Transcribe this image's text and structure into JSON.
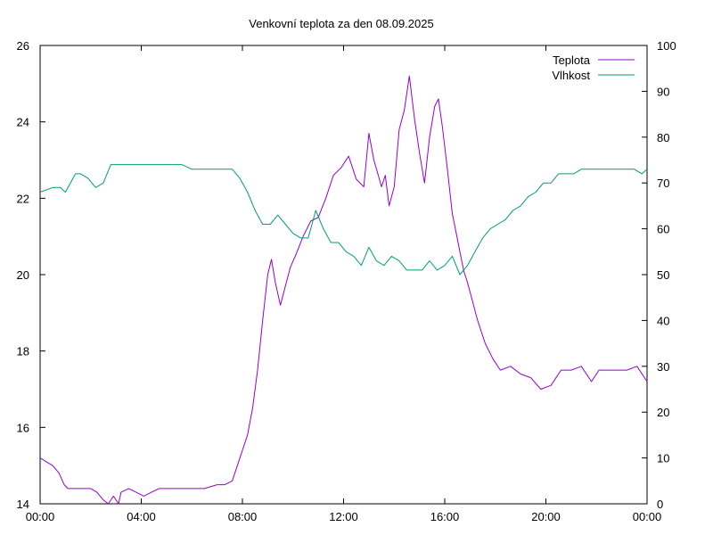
{
  "chart_data": {
    "type": "line",
    "title": "Venkovní teplota za den 08.09.2025",
    "x_ticks": [
      "00:00",
      "04:00",
      "08:00",
      "12:00",
      "16:00",
      "20:00",
      "00:00"
    ],
    "x_tick_hours": [
      0,
      4,
      8,
      12,
      16,
      20,
      24
    ],
    "x_range_hours": [
      0,
      24
    ],
    "y_left_ticks": [
      "14",
      "16",
      "18",
      "20",
      "22",
      "24",
      "26"
    ],
    "y_left_range": [
      14,
      26
    ],
    "y_right_ticks": [
      "0",
      "10",
      "20",
      "30",
      "40",
      "50",
      "60",
      "70",
      "80",
      "90",
      "100"
    ],
    "y_right_range": [
      0,
      100
    ],
    "grid": false,
    "legend_position": "top-right",
    "series": [
      {
        "name": "Teplota",
        "axis": "left",
        "color": "#9400d3",
        "x": [
          0,
          0.25,
          0.5,
          0.75,
          0.95,
          1.1,
          1.3,
          1.6,
          2.0,
          2.25,
          2.5,
          2.7,
          2.9,
          3.1,
          3.2,
          3.5,
          3.8,
          4.1,
          4.4,
          4.7,
          5.0,
          5.5,
          6.0,
          6.5,
          7.0,
          7.3,
          7.6,
          7.8,
          8.0,
          8.2,
          8.4,
          8.6,
          8.8,
          9.0,
          9.15,
          9.3,
          9.5,
          9.7,
          9.9,
          10.1,
          10.4,
          10.7,
          11.0,
          11.3,
          11.6,
          11.9,
          12.2,
          12.5,
          12.8,
          13.0,
          13.2,
          13.5,
          13.65,
          13.8,
          14.0,
          14.2,
          14.4,
          14.6,
          14.8,
          15.0,
          15.2,
          15.4,
          15.6,
          15.75,
          15.9,
          16.1,
          16.3,
          16.45,
          16.6,
          16.75,
          16.9,
          17.1,
          17.3,
          17.6,
          17.9,
          18.2,
          18.6,
          19.0,
          19.4,
          19.8,
          20.2,
          20.6,
          21.0,
          21.4,
          21.8,
          22.1,
          22.5,
          22.8,
          23.2,
          23.6,
          24.0
        ],
        "y": [
          15.2,
          15.1,
          15.0,
          14.8,
          14.5,
          14.4,
          14.4,
          14.4,
          14.4,
          14.3,
          14.1,
          14.0,
          14.2,
          14.0,
          14.3,
          14.4,
          14.3,
          14.2,
          14.3,
          14.4,
          14.4,
          14.4,
          14.4,
          14.4,
          14.5,
          14.5,
          14.6,
          15.0,
          15.4,
          15.8,
          16.5,
          17.5,
          18.8,
          20.0,
          20.4,
          19.8,
          19.2,
          19.7,
          20.2,
          20.5,
          21.0,
          21.4,
          21.5,
          22.0,
          22.6,
          22.8,
          23.1,
          22.5,
          22.3,
          23.7,
          23.0,
          22.3,
          22.6,
          21.8,
          22.3,
          23.8,
          24.3,
          25.2,
          24.1,
          23.2,
          22.4,
          23.6,
          24.4,
          24.6,
          23.9,
          22.8,
          21.6,
          21.1,
          20.6,
          20.1,
          19.8,
          19.3,
          18.8,
          18.2,
          17.8,
          17.5,
          17.6,
          17.4,
          17.3,
          17.0,
          17.1,
          17.5,
          17.5,
          17.6,
          17.2,
          17.5,
          17.5,
          17.5,
          17.5,
          17.6,
          17.2
        ]
      },
      {
        "name": "Vlhkost",
        "axis": "right",
        "color": "#009e73",
        "x": [
          0,
          0.5,
          0.8,
          1.0,
          1.2,
          1.4,
          1.6,
          1.9,
          2.2,
          2.5,
          2.8,
          3.1,
          3.3,
          3.7,
          4.0,
          4.4,
          4.8,
          5.2,
          5.6,
          6.0,
          6.4,
          6.8,
          7.2,
          7.6,
          7.9,
          8.2,
          8.5,
          8.8,
          9.1,
          9.4,
          9.7,
          10.0,
          10.3,
          10.6,
          10.9,
          11.2,
          11.5,
          11.8,
          12.1,
          12.4,
          12.7,
          13.0,
          13.3,
          13.6,
          13.9,
          14.2,
          14.5,
          14.8,
          15.1,
          15.4,
          15.7,
          16.0,
          16.3,
          16.6,
          16.9,
          17.2,
          17.5,
          17.8,
          18.1,
          18.4,
          18.7,
          19.0,
          19.3,
          19.6,
          19.9,
          20.2,
          20.5,
          20.8,
          21.1,
          21.4,
          21.7,
          22.0,
          22.3,
          22.6,
          22.9,
          23.2,
          23.5,
          23.8,
          24.0
        ],
        "y": [
          68,
          69,
          69,
          68,
          70,
          72,
          72,
          71,
          69,
          70,
          74,
          74,
          74,
          74,
          74,
          74,
          74,
          74,
          74,
          73,
          73,
          73,
          73,
          73,
          71,
          68,
          64,
          61,
          61,
          63,
          61,
          59,
          58,
          58,
          64,
          60,
          57,
          57,
          55,
          54,
          52,
          56,
          53,
          52,
          54,
          53,
          51,
          51,
          51,
          53,
          51,
          52,
          54,
          50,
          52,
          55,
          58,
          60,
          61,
          62,
          64,
          65,
          67,
          68,
          70,
          70,
          72,
          72,
          72,
          73,
          73,
          73,
          73,
          73,
          73,
          73,
          73,
          72,
          73
        ]
      }
    ]
  }
}
